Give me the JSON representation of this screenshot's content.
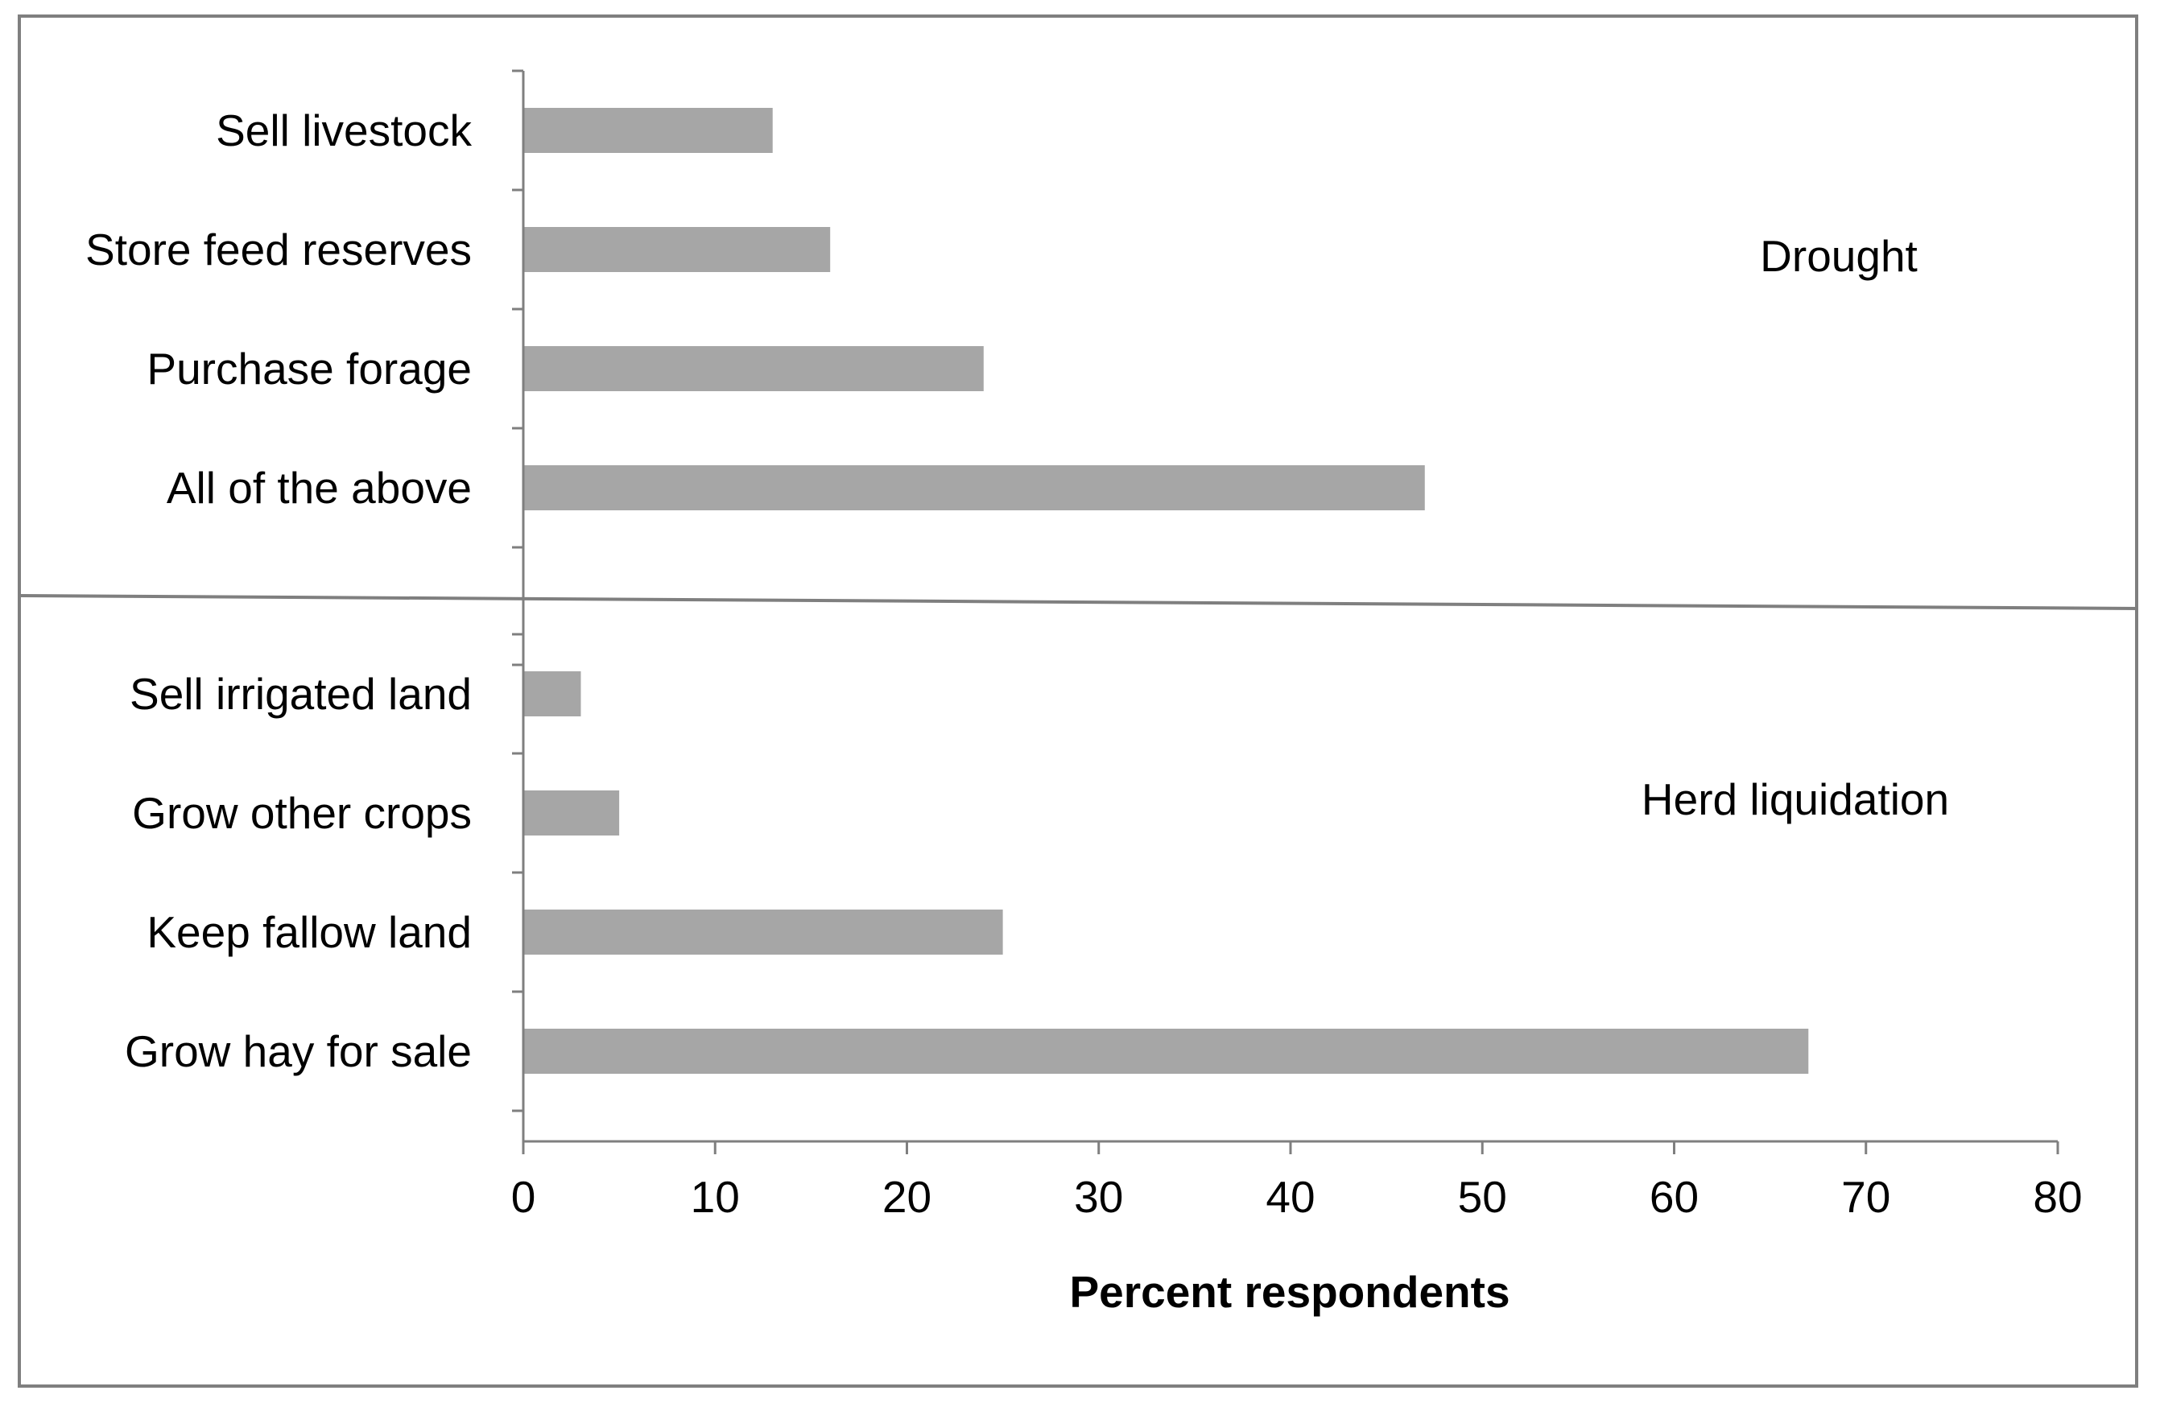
{
  "chart_data": {
    "type": "bar",
    "orientation": "horizontal",
    "xlabel": "Percent respondents",
    "xlim": [
      0,
      80
    ],
    "x_ticks": [
      "0",
      "10",
      "20",
      "30",
      "40",
      "50",
      "60",
      "70",
      "80"
    ],
    "grid": false,
    "bar_color": "#a6a6a6",
    "groups": [
      {
        "name": "Drought",
        "categories": [
          "Sell livestock",
          "Store feed reserves",
          "Purchase forage",
          "All of the above"
        ],
        "values": [
          13,
          16,
          24,
          47
        ]
      },
      {
        "name": "Herd liquidation",
        "categories": [
          "Sell  irrigated land",
          "Grow other crops",
          "Keep fallow land",
          "Grow hay for sale"
        ],
        "values": [
          3,
          5,
          25,
          67
        ]
      }
    ]
  }
}
